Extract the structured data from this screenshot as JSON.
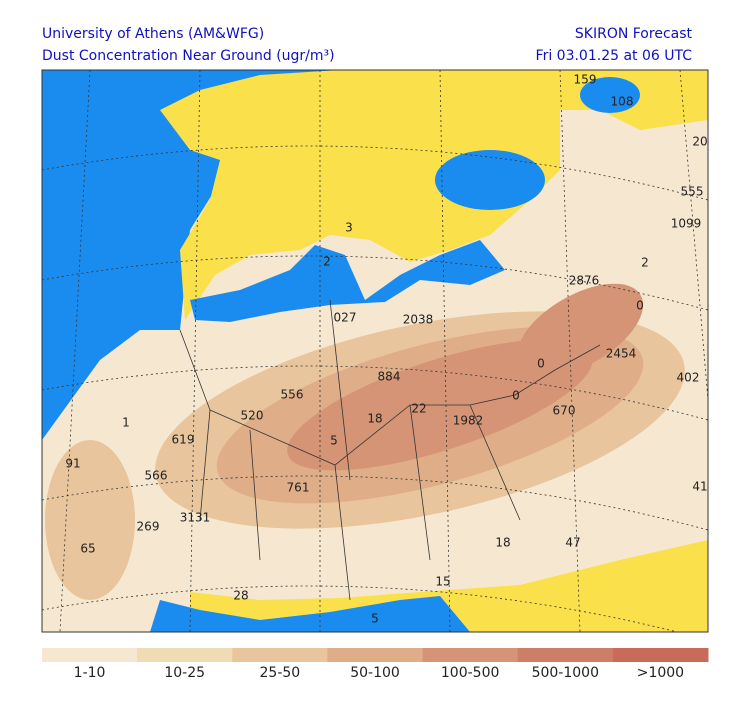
{
  "header": {
    "institution": "University of Athens (AM&WFG)",
    "product": "Dust Concentration Near Ground (ugr/m³)",
    "model": "SKIRON Forecast",
    "time": "Fri 03.01.25 at 06 UTC"
  },
  "map": {
    "labels": [
      "159",
      "108",
      "20",
      "555",
      "1099",
      "2",
      "2876",
      "0",
      "3",
      "2",
      "027",
      "2038",
      "2454",
      "402",
      "0",
      "0",
      "884",
      "556",
      "520",
      "18",
      "22",
      "1982",
      "670",
      "5",
      "1",
      "619",
      "91",
      "566",
      "761",
      "3131",
      "269",
      "65",
      "18",
      "47",
      "41",
      "15",
      "28",
      "5"
    ]
  },
  "legend": {
    "items": [
      {
        "label": "1-10",
        "color": "#f6e8d0"
      },
      {
        "label": "10-25",
        "color": "#efdbb4"
      },
      {
        "label": "25-50",
        "color": "#e8c59c"
      },
      {
        "label": "50-100",
        "color": "#dfae88"
      },
      {
        "label": "100-500",
        "color": "#d59475"
      },
      {
        "label": "500-1000",
        "color": "#cc7e67"
      },
      {
        "label": ">1000",
        "color": "#c96b58"
      }
    ]
  }
}
